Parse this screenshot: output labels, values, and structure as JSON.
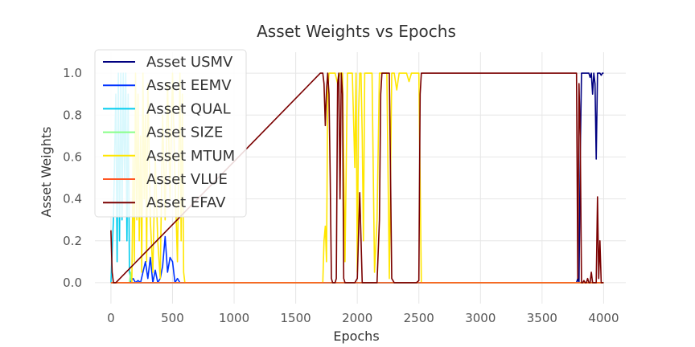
{
  "chart_data": {
    "type": "line",
    "title": "Asset Weights vs Epochs",
    "xlabel": "Epochs",
    "ylabel": "Asset Weights",
    "xlim": [
      -130,
      4180
    ],
    "ylim": [
      -0.1,
      1.1
    ],
    "xticks": [
      0,
      500,
      1000,
      1500,
      2000,
      2500,
      3000,
      3500,
      4000
    ],
    "xtick_labels": [
      "0",
      "500",
      "1000",
      "1500",
      "2000",
      "2500",
      "3000",
      "3500",
      "4000"
    ],
    "yticks": [
      0.0,
      0.2,
      0.4,
      0.6,
      0.8,
      1.0
    ],
    "ytick_labels": [
      "0.0",
      "0.2",
      "0.4",
      "0.6",
      "0.8",
      "1.0"
    ],
    "grid": true,
    "legend_position": "top-left",
    "series": [
      {
        "name": "Asset USMV",
        "color": "#000080",
        "x": [
          0,
          10,
          20,
          30,
          3780,
          3790,
          3800,
          3810,
          3820,
          3830,
          3840,
          3850,
          3860,
          3870,
          3880,
          3890,
          3900,
          3910,
          3920,
          3930,
          3940,
          3950,
          3960,
          3970,
          3980,
          3990,
          4000
        ],
        "y": [
          0,
          0,
          0,
          0,
          0,
          0.02,
          0,
          0.6,
          1.0,
          1.0,
          1.0,
          1.0,
          1.0,
          1.0,
          1.0,
          0.98,
          1.0,
          0.9,
          1.0,
          0.95,
          0.59,
          1.0,
          1.0,
          1.0,
          0.99,
          1.0,
          1.0
        ]
      },
      {
        "name": "Asset EEMV",
        "color": "#0033ff",
        "x": [
          0,
          100,
          150,
          180,
          200,
          220,
          240,
          260,
          280,
          300,
          320,
          340,
          360,
          380,
          400,
          420,
          440,
          460,
          480,
          500,
          520,
          540,
          560,
          580,
          600,
          4000
        ],
        "y": [
          0,
          0,
          0,
          0.02,
          0,
          0.01,
          0,
          0.05,
          0.1,
          0.02,
          0.12,
          0,
          0.06,
          0,
          0.02,
          0.08,
          0.22,
          0.05,
          0.12,
          0.1,
          0,
          0.02,
          0,
          0,
          0,
          0
        ]
      },
      {
        "name": "Asset QUAL",
        "color": "#00ccee",
        "x": [
          0,
          20,
          40,
          50,
          60,
          70,
          80,
          90,
          100,
          110,
          120,
          130,
          140,
          150,
          170,
          200,
          4000
        ],
        "y": [
          0,
          0.3,
          0.9,
          0.1,
          1.0,
          0.2,
          1.0,
          0.3,
          1.0,
          0.5,
          1.0,
          0.2,
          0.9,
          0.05,
          0,
          0,
          0
        ]
      },
      {
        "name": "Asset SIZE",
        "color": "#88ff88",
        "x": [
          0,
          100,
          150,
          160,
          170,
          4000
        ],
        "y": [
          0,
          0,
          0,
          0.05,
          0,
          0
        ]
      },
      {
        "name": "Asset MTUM",
        "color": "#ffe600",
        "x": [
          0,
          170,
          180,
          190,
          200,
          210,
          220,
          230,
          240,
          250,
          260,
          270,
          280,
          290,
          300,
          320,
          340,
          360,
          380,
          400,
          420,
          440,
          460,
          480,
          500,
          520,
          540,
          560,
          570,
          580,
          590,
          600,
          1700,
          1720,
          1730,
          1740,
          1750,
          1760,
          1770,
          1780,
          1790,
          1800,
          1820,
          1840,
          1860,
          1880,
          1900,
          1920,
          1940,
          1960,
          1980,
          1990,
          2000,
          2010,
          2020,
          2030,
          2040,
          2050,
          2060,
          2080,
          2100,
          2120,
          2140,
          2160,
          2180,
          2200,
          2220,
          2240,
          2260,
          2280,
          2300,
          2320,
          2340,
          2360,
          2380,
          2400,
          2420,
          2440,
          2460,
          2480,
          2500,
          2520,
          2540,
          4000
        ],
        "y": [
          0,
          0,
          0.6,
          0.1,
          1.0,
          0.3,
          0.9,
          0.2,
          0.7,
          0.05,
          1.0,
          0.4,
          0.8,
          0.1,
          0.95,
          0.3,
          0.05,
          0.6,
          0.2,
          0.02,
          0.8,
          0.3,
          0.95,
          0.4,
          1.0,
          0.5,
          0.1,
          1.0,
          0.2,
          0.9,
          0.05,
          0,
          0,
          0,
          0.2,
          0.27,
          0.1,
          0.9,
          1.0,
          1.0,
          1.0,
          1.0,
          1.0,
          0.95,
          1.0,
          1.0,
          0.1,
          1.0,
          1.0,
          1.0,
          0.55,
          1.0,
          0.05,
          0.8,
          1.0,
          1.0,
          0.7,
          0.2,
          1.0,
          1.0,
          1.0,
          1.0,
          0.05,
          0.3,
          1.0,
          1.0,
          1.0,
          1.0,
          0.02,
          1.0,
          1.0,
          0.92,
          1.0,
          1.0,
          1.0,
          1.0,
          0.96,
          1.0,
          1.0,
          1.0,
          1.0,
          0,
          0,
          0
        ]
      },
      {
        "name": "Asset VLUE",
        "color": "#ff5522",
        "x": [
          0,
          4000
        ],
        "y": [
          0,
          0
        ]
      },
      {
        "name": "Asset EFAV",
        "color": "#7a0000",
        "x": [
          0,
          10,
          20,
          30,
          40,
          1700,
          1710,
          1720,
          1730,
          1740,
          1750,
          1760,
          1770,
          1780,
          1790,
          1800,
          1810,
          1820,
          1830,
          1840,
          1850,
          1860,
          1870,
          1880,
          1890,
          1900,
          1910,
          1920,
          1930,
          1940,
          1950,
          1960,
          1980,
          2000,
          2020,
          2040,
          2060,
          2080,
          2100,
          2120,
          2140,
          2160,
          2180,
          2190,
          2200,
          2210,
          2220,
          2240,
          2260,
          2280,
          2300,
          2320,
          2340,
          2360,
          2380,
          2400,
          2420,
          2440,
          2460,
          2480,
          2500,
          2510,
          2520,
          2530,
          2540,
          3780,
          3790,
          3800,
          3810,
          3820,
          3830,
          3840,
          3850,
          3860,
          3870,
          3880,
          3890,
          3900,
          3910,
          3920,
          3930,
          3940,
          3950,
          3960,
          3970,
          3980,
          3990,
          4000
        ],
        "y": [
          0.25,
          0.05,
          0,
          0,
          0,
          1.0,
          1.0,
          1.0,
          0.95,
          0.75,
          0.92,
          1.0,
          0.9,
          0.5,
          0.02,
          0,
          0,
          0,
          0.02,
          0.95,
          1.0,
          0.4,
          1.0,
          0.9,
          0.02,
          0,
          0,
          0,
          0,
          0,
          0,
          0,
          0,
          0.02,
          0.43,
          0,
          0,
          0,
          0,
          0,
          0,
          0,
          0.3,
          0.9,
          1.0,
          1.0,
          1.0,
          1.0,
          1.0,
          0.02,
          0,
          0,
          0,
          0,
          0,
          0,
          0,
          0,
          0,
          0,
          0.01,
          0.9,
          1.0,
          1.0,
          1.0,
          1.0,
          0.02,
          0.95,
          0.7,
          0,
          0,
          0.01,
          0,
          0,
          0.02,
          0,
          0,
          0.05,
          0,
          0,
          0,
          0,
          0.41,
          0.02,
          0.2,
          0,
          0,
          0
        ]
      }
    ]
  }
}
